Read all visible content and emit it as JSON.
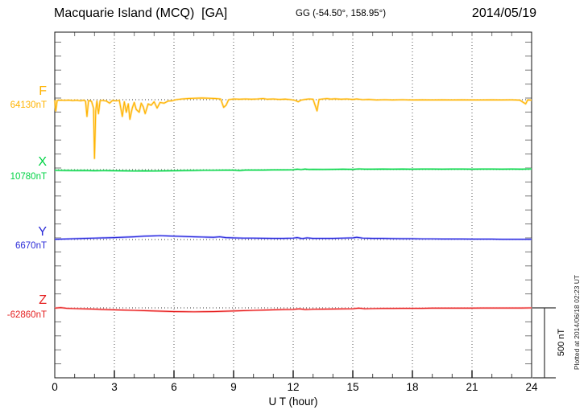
{
  "header": {
    "title": "Macquarie Island (MCQ)  [GA]",
    "coords": "GG (-54.50°, 158.95°)",
    "date": "2014/05/19"
  },
  "footer_note": "Plotted at 2014/06/18 02:23 UT",
  "chart_data": {
    "type": "line",
    "title": "Macquarie Island (MCQ) [GA] magnetogram",
    "xlabel": "U T (hour)",
    "x_range": [
      0,
      24
    ],
    "x_tick_labels": [
      "0",
      "3",
      "6",
      "9",
      "12",
      "15",
      "18",
      "21",
      "24"
    ],
    "grid": "vertical dotted lines every 3 hours; dotted horizontal baseline per trace",
    "legend_position": "left margin, one colored label per trace",
    "scale_bar": {
      "label": "500 nT",
      "value_nT": 500
    },
    "units": "nT offsets from each trace baseline",
    "series": [
      {
        "name": "F",
        "baseline_label": "64130nT",
        "baseline_nT": 64130,
        "color": "#FFB300",
        "color_light": "#FFD878",
        "points": [
          [
            0,
            -3
          ],
          [
            0.05,
            -80
          ],
          [
            0.12,
            -5
          ],
          [
            0.3,
            -3
          ],
          [
            0.5,
            -5
          ],
          [
            0.7,
            -3
          ],
          [
            0.9,
            -6
          ],
          [
            1.1,
            -4
          ],
          [
            1.3,
            -8
          ],
          [
            1.45,
            -4
          ],
          [
            1.55,
            -10
          ],
          [
            1.62,
            -120
          ],
          [
            1.7,
            -6
          ],
          [
            1.85,
            -12
          ],
          [
            1.95,
            -60
          ],
          [
            2.0,
            -420
          ],
          [
            2.06,
            -80
          ],
          [
            2.12,
            -10
          ],
          [
            2.2,
            -100
          ],
          [
            2.28,
            -8
          ],
          [
            2.4,
            -5
          ],
          [
            2.6,
            -10
          ],
          [
            2.76,
            -25
          ],
          [
            2.9,
            -6
          ],
          [
            3.1,
            -8
          ],
          [
            3.25,
            -5
          ],
          [
            3.4,
            -120
          ],
          [
            3.5,
            -15
          ],
          [
            3.6,
            -90
          ],
          [
            3.7,
            -30
          ],
          [
            3.78,
            -140
          ],
          [
            3.9,
            -60
          ],
          [
            4.0,
            -20
          ],
          [
            4.1,
            -70
          ],
          [
            4.25,
            -90
          ],
          [
            4.35,
            -25
          ],
          [
            4.45,
            -50
          ],
          [
            4.55,
            -100
          ],
          [
            4.7,
            -30
          ],
          [
            4.85,
            -40
          ],
          [
            5.0,
            -15
          ],
          [
            5.15,
            -60
          ],
          [
            5.3,
            -20
          ],
          [
            5.5,
            -25
          ],
          [
            5.7,
            -10
          ],
          [
            5.9,
            -8
          ],
          [
            6.1,
            0
          ],
          [
            6.4,
            5
          ],
          [
            6.7,
            8
          ],
          [
            7.0,
            10
          ],
          [
            7.4,
            12
          ],
          [
            7.8,
            10
          ],
          [
            8.1,
            8
          ],
          [
            8.35,
            5
          ],
          [
            8.5,
            -55
          ],
          [
            8.62,
            -40
          ],
          [
            8.75,
            0
          ],
          [
            9.0,
            5
          ],
          [
            9.3,
            3
          ],
          [
            9.6,
            5
          ],
          [
            9.9,
            3
          ],
          [
            10.2,
            5
          ],
          [
            10.5,
            8
          ],
          [
            10.7,
            3
          ],
          [
            11.0,
            5
          ],
          [
            11.3,
            2
          ],
          [
            11.6,
            4
          ],
          [
            11.9,
            0
          ],
          [
            12.1,
            -5
          ],
          [
            12.25,
            -15
          ],
          [
            12.4,
            -3
          ],
          [
            12.6,
            2
          ],
          [
            12.8,
            5
          ],
          [
            13.0,
            3
          ],
          [
            13.2,
            -80
          ],
          [
            13.3,
            2
          ],
          [
            13.5,
            5
          ],
          [
            13.7,
            8
          ],
          [
            13.9,
            4
          ],
          [
            14.1,
            6
          ],
          [
            14.4,
            3
          ],
          [
            14.7,
            5
          ],
          [
            15.0,
            2
          ],
          [
            15.2,
            5
          ],
          [
            15.5,
            0
          ],
          [
            15.8,
            2
          ],
          [
            16.2,
            -2
          ],
          [
            16.6,
            0
          ],
          [
            17.0,
            -2
          ],
          [
            17.5,
            0
          ],
          [
            18.0,
            -2
          ],
          [
            18.5,
            -1
          ],
          [
            19.0,
            -2
          ],
          [
            19.5,
            -1
          ],
          [
            20.0,
            -2
          ],
          [
            20.5,
            -1
          ],
          [
            21.0,
            -2
          ],
          [
            21.5,
            -2
          ],
          [
            22.0,
            -1
          ],
          [
            22.5,
            -2
          ],
          [
            23.0,
            -1
          ],
          [
            23.4,
            -3
          ],
          [
            23.7,
            -30
          ],
          [
            23.8,
            -2
          ],
          [
            24,
            -3
          ]
        ]
      },
      {
        "name": "X",
        "baseline_label": "10780nT",
        "baseline_nT": 10780,
        "color": "#00D344",
        "color_light": "#7CEFA0",
        "points": [
          [
            0,
            -5
          ],
          [
            0.5,
            -6
          ],
          [
            1,
            -7
          ],
          [
            1.5,
            -6
          ],
          [
            2,
            -8
          ],
          [
            2.5,
            -7
          ],
          [
            3,
            -8
          ],
          [
            3.5,
            -9
          ],
          [
            4,
            -10
          ],
          [
            4.5,
            -9
          ],
          [
            5,
            -10
          ],
          [
            5.5,
            -9
          ],
          [
            6,
            -8
          ],
          [
            6.5,
            -7
          ],
          [
            7,
            -6
          ],
          [
            7.5,
            -5
          ],
          [
            8,
            -5
          ],
          [
            8.5,
            -4
          ],
          [
            9,
            -4
          ],
          [
            9.3,
            -7
          ],
          [
            9.6,
            -3
          ],
          [
            10,
            -3
          ],
          [
            10.5,
            -3
          ],
          [
            11,
            -2
          ],
          [
            11.5,
            -2
          ],
          [
            12,
            -1
          ],
          [
            12.2,
            3
          ],
          [
            12.4,
            0
          ],
          [
            12.6,
            4
          ],
          [
            12.8,
            1
          ],
          [
            13,
            2
          ],
          [
            13.5,
            1
          ],
          [
            14,
            2
          ],
          [
            14.5,
            3
          ],
          [
            15,
            2
          ],
          [
            15.3,
            5
          ],
          [
            15.6,
            3
          ],
          [
            16,
            3
          ],
          [
            16.5,
            4
          ],
          [
            17,
            3
          ],
          [
            17.5,
            4
          ],
          [
            18,
            3
          ],
          [
            18.5,
            4
          ],
          [
            19,
            4
          ],
          [
            19.5,
            3
          ],
          [
            20,
            4
          ],
          [
            20.5,
            4
          ],
          [
            21,
            3
          ],
          [
            21.5,
            4
          ],
          [
            22,
            4
          ],
          [
            22.5,
            3
          ],
          [
            23,
            4
          ],
          [
            23.5,
            3
          ],
          [
            24,
            5
          ]
        ]
      },
      {
        "name": "Y",
        "baseline_label": "6670nT",
        "baseline_nT": 6670,
        "color": "#2B2BD8",
        "color_light": "#9A9AFF",
        "points": [
          [
            0,
            2
          ],
          [
            0.5,
            4
          ],
          [
            1,
            6
          ],
          [
            1.5,
            8
          ],
          [
            2,
            10
          ],
          [
            2.5,
            12
          ],
          [
            3,
            14
          ],
          [
            3.5,
            17
          ],
          [
            4,
            20
          ],
          [
            4.5,
            24
          ],
          [
            5,
            26
          ],
          [
            5.3,
            28
          ],
          [
            5.6,
            26
          ],
          [
            6,
            24
          ],
          [
            6.5,
            22
          ],
          [
            7,
            20
          ],
          [
            7.5,
            18
          ],
          [
            8,
            16
          ],
          [
            8.3,
            20
          ],
          [
            8.6,
            14
          ],
          [
            9,
            12
          ],
          [
            9.5,
            10
          ],
          [
            10,
            10
          ],
          [
            10.5,
            9
          ],
          [
            11,
            8
          ],
          [
            11.5,
            8
          ],
          [
            12,
            10
          ],
          [
            12.2,
            14
          ],
          [
            12.45,
            7
          ],
          [
            12.7,
            12
          ],
          [
            13,
            8
          ],
          [
            13.5,
            8
          ],
          [
            14,
            8
          ],
          [
            14.5,
            10
          ],
          [
            15,
            12
          ],
          [
            15.2,
            16
          ],
          [
            15.5,
            10
          ],
          [
            16,
            8
          ],
          [
            16.5,
            8
          ],
          [
            17,
            7
          ],
          [
            17.5,
            6
          ],
          [
            18,
            6
          ],
          [
            18.5,
            5
          ],
          [
            19,
            5
          ],
          [
            19.5,
            4
          ],
          [
            20,
            4
          ],
          [
            20.5,
            4
          ],
          [
            21,
            3
          ],
          [
            21.5,
            3
          ],
          [
            22,
            3
          ],
          [
            22.5,
            2
          ],
          [
            23,
            2
          ],
          [
            23.5,
            2
          ],
          [
            24,
            2
          ]
        ]
      },
      {
        "name": "Z",
        "baseline_label": "-62860nT",
        "baseline_nT": -62860,
        "color": "#E52222",
        "color_light": "#FF9E9E",
        "points": [
          [
            0,
            -2
          ],
          [
            0.3,
            2
          ],
          [
            0.6,
            -3
          ],
          [
            1,
            -5
          ],
          [
            1.5,
            -7
          ],
          [
            2,
            -9
          ],
          [
            2.5,
            -12
          ],
          [
            3,
            -14
          ],
          [
            3.5,
            -16
          ],
          [
            4,
            -18
          ],
          [
            4.5,
            -20
          ],
          [
            5,
            -22
          ],
          [
            5.5,
            -24
          ],
          [
            6,
            -26
          ],
          [
            6.5,
            -27
          ],
          [
            7,
            -28
          ],
          [
            7.5,
            -27
          ],
          [
            8,
            -26
          ],
          [
            8.5,
            -24
          ],
          [
            9,
            -22
          ],
          [
            9.5,
            -20
          ],
          [
            10,
            -18
          ],
          [
            10.5,
            -16
          ],
          [
            11,
            -14
          ],
          [
            11.5,
            -12
          ],
          [
            12,
            -11
          ],
          [
            12.3,
            -7
          ],
          [
            12.6,
            -12
          ],
          [
            13,
            -10
          ],
          [
            13.5,
            -9
          ],
          [
            14,
            -8
          ],
          [
            14.5,
            -7
          ],
          [
            15,
            -6
          ],
          [
            15.3,
            -2
          ],
          [
            15.6,
            -6
          ],
          [
            16,
            -5
          ],
          [
            16.5,
            -4
          ],
          [
            17,
            -4
          ],
          [
            17.5,
            -3
          ],
          [
            18,
            -3
          ],
          [
            18.5,
            -3
          ],
          [
            19,
            -2
          ],
          [
            19.5,
            -2
          ],
          [
            20,
            -2
          ],
          [
            20.5,
            -2
          ],
          [
            21,
            -2
          ],
          [
            21.5,
            -1
          ],
          [
            22,
            -1
          ],
          [
            22.5,
            -1
          ],
          [
            23,
            -1
          ],
          [
            23.5,
            -1
          ],
          [
            24,
            0
          ]
        ]
      }
    ]
  }
}
